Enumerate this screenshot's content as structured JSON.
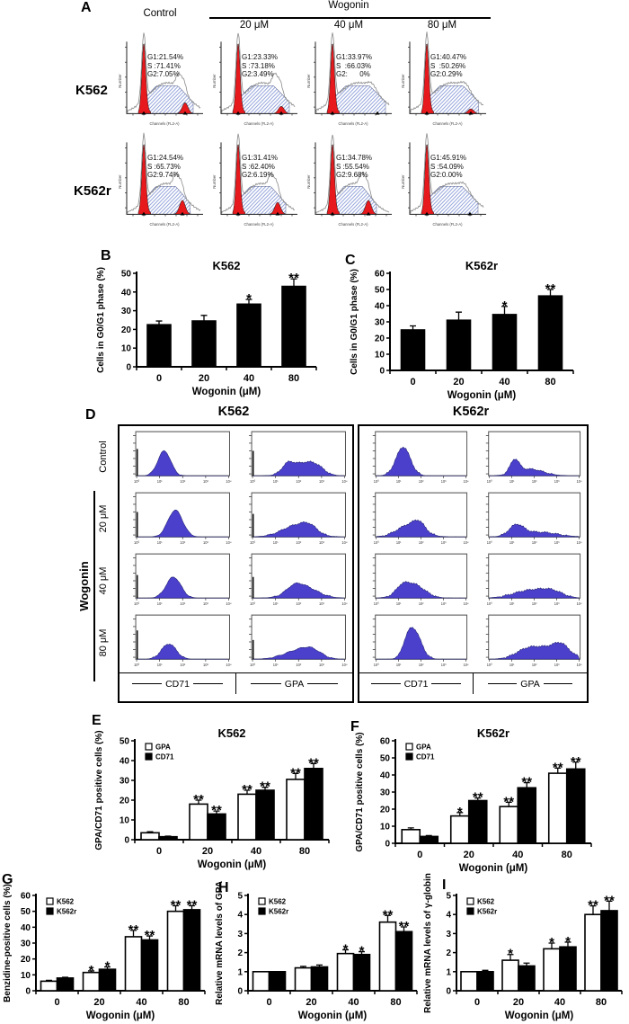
{
  "figure": {
    "colors": {
      "flow_g1_peak": "#e8191d",
      "flow_s_hatch": "#8e9fd9",
      "flow_outline": "#8a8a8a",
      "panelD_hist_fill": "#4b40cc",
      "bar_white": "#ffffff",
      "bar_black": "#000000"
    },
    "panelA": {
      "label": "A",
      "header": {
        "control": "Control",
        "wogonin": "Wogonin",
        "doses": [
          "20 μM",
          "40 μM",
          "80 μM"
        ]
      },
      "axis": {
        "x": "Channels (FL2-A)",
        "y": "Number"
      },
      "rows": [
        {
          "name": "K562",
          "cells": [
            {
              "lines": [
                "G1:21.54%",
                "S :71.41%",
                "G2:7.05%"
              ]
            },
            {
              "lines": [
                "G1:23.33%",
                "S :73.18%",
                "G2:3.49%"
              ]
            },
            {
              "lines": [
                "G1:33.97%",
                "S  :66.03%",
                "G2:      0%"
              ]
            },
            {
              "lines": [
                "G1:40.47%",
                "S  :50.26%",
                "G2:0.29%"
              ]
            }
          ]
        },
        {
          "name": "K562r",
          "cells": [
            {
              "lines": [
                "G1:24.54%",
                "S :65.73%",
                "G2:9.74%"
              ]
            },
            {
              "lines": [
                "G1:31.41%",
                "S :62.40%",
                "G2:6.19%"
              ]
            },
            {
              "lines": [
                "G1:34.78%",
                "S :55.54%",
                "G2:9.68%"
              ]
            },
            {
              "lines": [
                "G1:45.91%",
                "S :54.09%",
                "G2:0.00%"
              ]
            }
          ]
        }
      ]
    },
    "panelD": {
      "label": "D",
      "groups": [
        "K562",
        "K562r"
      ],
      "row_labels": [
        "Control",
        "20 μM",
        "40 μM",
        "80 μM"
      ],
      "side_label": "Wogonin",
      "col_labels": [
        "CD71",
        "GPA",
        "CD71",
        "GPA"
      ]
    }
  },
  "chart_data": [
    {
      "panel_label": "B",
      "type": "bar",
      "title": "K562",
      "xlabel": "Wogonin (μM)",
      "ylabel": "Cells in G0/G1 phase (%)",
      "ylim": [
        0,
        50
      ],
      "ytick_step": 10,
      "categories": [
        "0",
        "20",
        "40",
        "80"
      ],
      "legend": false,
      "series": [
        {
          "name": "",
          "color": "#000000",
          "values": [
            22.5,
            24.5,
            33.5,
            43
          ],
          "errors": [
            2,
            3,
            2.5,
            4
          ],
          "sig": [
            "",
            "",
            "*",
            "**"
          ]
        }
      ]
    },
    {
      "panel_label": "C",
      "type": "bar",
      "title": "K562r",
      "xlabel": "Wogonin (μM)",
      "ylabel": "Cells in G0/G1 phase (%)",
      "ylim": [
        0,
        60
      ],
      "ytick_step": 10,
      "categories": [
        "0",
        "20",
        "40",
        "80"
      ],
      "legend": false,
      "series": [
        {
          "name": "",
          "color": "#000000",
          "values": [
            25,
            31,
            34.5,
            46
          ],
          "errors": [
            2.5,
            5,
            5,
            4
          ],
          "sig": [
            "",
            "",
            "*",
            "**"
          ]
        }
      ]
    },
    {
      "panel_label": "E",
      "type": "bar",
      "title": "K562",
      "xlabel": "Wogonin (μM)",
      "ylabel": "GPA/CD71 positive cells (%)",
      "ylim": [
        0,
        50
      ],
      "ytick_step": 10,
      "categories": [
        "0",
        "20",
        "40",
        "80"
      ],
      "legend": true,
      "series": [
        {
          "name": "GPA",
          "color": "#ffffff",
          "values": [
            3.5,
            18,
            23,
            30.5
          ],
          "errors": [
            0.5,
            2,
            2,
            3
          ],
          "sig": [
            "",
            "**",
            "**",
            "**"
          ]
        },
        {
          "name": "CD71",
          "color": "#000000",
          "values": [
            1.5,
            13,
            25,
            36
          ],
          "errors": [
            0.3,
            1.5,
            1.5,
            2.5
          ],
          "sig": [
            "",
            "**",
            "**",
            "**"
          ]
        }
      ]
    },
    {
      "panel_label": "F",
      "type": "bar",
      "title": "K562r",
      "xlabel": "Wogonin (μM)",
      "ylabel": "GPA/CD71 positive cells (%)",
      "ylim": [
        0,
        60
      ],
      "ytick_step": 10,
      "categories": [
        "0",
        "20",
        "40",
        "80"
      ],
      "legend": true,
      "series": [
        {
          "name": "GPA",
          "color": "#ffffff",
          "values": [
            8,
            16,
            21.5,
            41
          ],
          "errors": [
            1,
            2,
            2.5,
            3
          ],
          "sig": [
            "",
            "*",
            "**",
            "**"
          ]
        },
        {
          "name": "CD71",
          "color": "#000000",
          "values": [
            4,
            25,
            32.5,
            43.5
          ],
          "errors": [
            0.5,
            1.5,
            3,
            4
          ],
          "sig": [
            "",
            "**",
            "**",
            "**"
          ]
        }
      ]
    },
    {
      "panel_label": "G",
      "type": "bar",
      "title": "",
      "xlabel": "Wogonin (μM)",
      "ylabel": "Benzidine-positive cells (%)",
      "ylim": [
        0,
        60
      ],
      "ytick_step": 10,
      "categories": [
        "0",
        "20",
        "40",
        "80"
      ],
      "legend": true,
      "series": [
        {
          "name": "K562",
          "color": "#ffffff",
          "values": [
            6,
            11.5,
            34,
            50
          ],
          "errors": [
            0.6,
            1,
            4,
            3.5
          ],
          "sig": [
            "",
            "*",
            "**",
            "**"
          ]
        },
        {
          "name": "K562r",
          "color": "#000000",
          "values": [
            8,
            13.5,
            32,
            51
          ],
          "errors": [
            0.5,
            1.5,
            2.5,
            2.5
          ],
          "sig": [
            "",
            "*",
            "**",
            "**"
          ]
        }
      ]
    },
    {
      "panel_label": "H",
      "type": "bar",
      "title": "",
      "xlabel": "Wogonin (μM)",
      "ylabel": "Relative mRNA levels of GPA",
      "ylim": [
        0,
        5
      ],
      "ytick_step": 1,
      "categories": [
        "0",
        "20",
        "40",
        "80"
      ],
      "legend": true,
      "series": [
        {
          "name": "K562",
          "color": "#ffffff",
          "values": [
            1,
            1.2,
            1.95,
            3.6
          ],
          "errors": [
            0,
            0.08,
            0.2,
            0.35
          ],
          "sig": [
            "",
            "",
            "*",
            "**"
          ]
        },
        {
          "name": "K562r",
          "color": "#000000",
          "values": [
            1,
            1.25,
            1.9,
            3.1
          ],
          "errors": [
            0,
            0.1,
            0.15,
            0.25
          ],
          "sig": [
            "",
            "",
            "*",
            "**"
          ]
        }
      ]
    },
    {
      "panel_label": "I",
      "type": "bar",
      "title": "",
      "xlabel": "Wogonin (μM)",
      "ylabel": "Relative mRNA levels of γ-globin",
      "ylim": [
        0,
        5
      ],
      "ytick_step": 1,
      "categories": [
        "0",
        "20",
        "40",
        "80"
      ],
      "legend": true,
      "series": [
        {
          "name": "K562",
          "color": "#ffffff",
          "values": [
            1,
            1.6,
            2.2,
            4.0
          ],
          "errors": [
            0,
            0.3,
            0.3,
            0.45
          ],
          "sig": [
            "",
            "*",
            "*",
            "**"
          ]
        },
        {
          "name": "K562r",
          "color": "#000000",
          "values": [
            1,
            1.3,
            2.3,
            4.2
          ],
          "errors": [
            0.07,
            0.15,
            0.25,
            0.5
          ],
          "sig": [
            "",
            "",
            "*",
            "**"
          ]
        }
      ]
    }
  ]
}
